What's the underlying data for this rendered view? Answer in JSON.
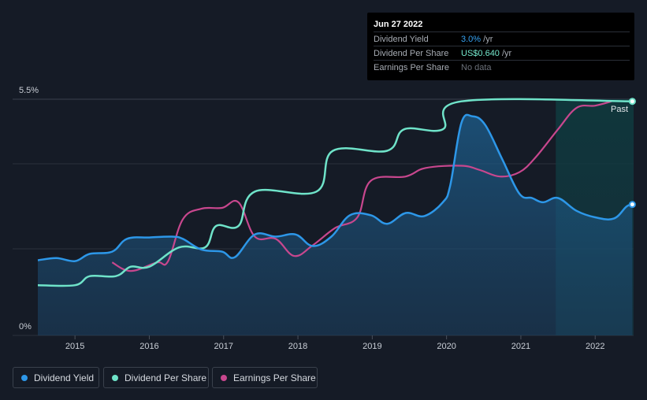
{
  "colors": {
    "dividend_yield": "#2d97e8",
    "dividend_per_share": "#6fe3c9",
    "earnings_per_share": "#c8478e",
    "grid": "#2a313c",
    "axis_text": "#c9ced6"
  },
  "tooltip": {
    "date": "Jun 27 2022",
    "rows": [
      {
        "label": "Dividend Yield",
        "value": "3.0%",
        "unit": " /yr"
      },
      {
        "label": "Dividend Per Share",
        "value": "US$0.640",
        "unit": " /yr"
      },
      {
        "label": "Earnings Per Share",
        "value": "No data",
        "unit": ""
      }
    ]
  },
  "legend": [
    {
      "label": "Dividend Yield",
      "color": "#2d97e8"
    },
    {
      "label": "Dividend Per Share",
      "color": "#6fe3c9"
    },
    {
      "label": "Earnings Per Share",
      "color": "#c8478e"
    }
  ],
  "chart_data": {
    "type": "line",
    "title": "",
    "xlabel": "",
    "ylabel": "",
    "x_ticks": [
      "2015",
      "2016",
      "2017",
      "2018",
      "2019",
      "2020",
      "2021",
      "2022"
    ],
    "x_range": [
      2014.5,
      2022.5
    ],
    "y_ticks": [
      "5.5%",
      "0%"
    ],
    "y_range": [
      0,
      5.5
    ],
    "grid": true,
    "past_region_start": 2021.47,
    "past_label": "Past",
    "series": [
      {
        "name": "Dividend Yield",
        "unit": "%",
        "x": [
          2014.5,
          2014.75,
          2015.0,
          2015.2,
          2015.5,
          2015.7,
          2016.0,
          2016.3,
          2016.45,
          2016.7,
          2016.98,
          2017.15,
          2017.42,
          2017.7,
          2017.97,
          2018.2,
          2018.45,
          2018.7,
          2018.98,
          2019.2,
          2019.45,
          2019.7,
          2019.95,
          2020.05,
          2020.2,
          2020.35,
          2020.52,
          2020.75,
          2020.98,
          2021.15,
          2021.3,
          2021.5,
          2021.75,
          2022.0,
          2022.25,
          2022.42,
          2022.5
        ],
        "values": [
          1.75,
          1.8,
          1.73,
          1.9,
          1.95,
          2.25,
          2.28,
          2.3,
          2.25,
          2.0,
          1.95,
          1.82,
          2.35,
          2.3,
          2.35,
          2.08,
          2.3,
          2.8,
          2.8,
          2.6,
          2.85,
          2.78,
          3.1,
          3.5,
          4.95,
          5.1,
          4.9,
          4.1,
          3.3,
          3.2,
          3.1,
          3.2,
          2.9,
          2.75,
          2.72,
          3.0,
          3.05
        ]
      },
      {
        "name": "Dividend Per Share",
        "unit": "US$",
        "x": [
          2014.5,
          2015.0,
          2015.2,
          2015.55,
          2015.75,
          2016.0,
          2016.4,
          2016.75,
          2016.9,
          2017.2,
          2017.42,
          2018.25,
          2018.47,
          2019.2,
          2019.43,
          2019.95,
          2020.2,
          2022.5
        ],
        "values": [
          1.17,
          1.17,
          1.38,
          1.38,
          1.6,
          1.6,
          2.05,
          2.05,
          2.55,
          2.55,
          3.35,
          3.35,
          4.3,
          4.3,
          4.8,
          4.8,
          5.45,
          5.45
        ]
      },
      {
        "name": "Earnings Per Share",
        "unit": "US$",
        "x": [
          2015.5,
          2015.75,
          2016.1,
          2016.25,
          2016.45,
          2016.7,
          2016.98,
          2017.2,
          2017.42,
          2017.7,
          2017.95,
          2018.2,
          2018.5,
          2018.8,
          2018.98,
          2019.45,
          2019.72,
          2020.2,
          2020.45,
          2020.72,
          2020.98,
          2021.2,
          2021.5,
          2021.75,
          2022.0,
          2022.22
        ],
        "values": [
          1.7,
          1.5,
          1.7,
          1.72,
          2.7,
          2.95,
          2.97,
          3.1,
          2.3,
          2.25,
          1.85,
          2.1,
          2.5,
          2.75,
          3.6,
          3.7,
          3.9,
          3.95,
          3.85,
          3.7,
          3.8,
          4.15,
          4.8,
          5.3,
          5.35,
          5.45
        ]
      }
    ]
  }
}
